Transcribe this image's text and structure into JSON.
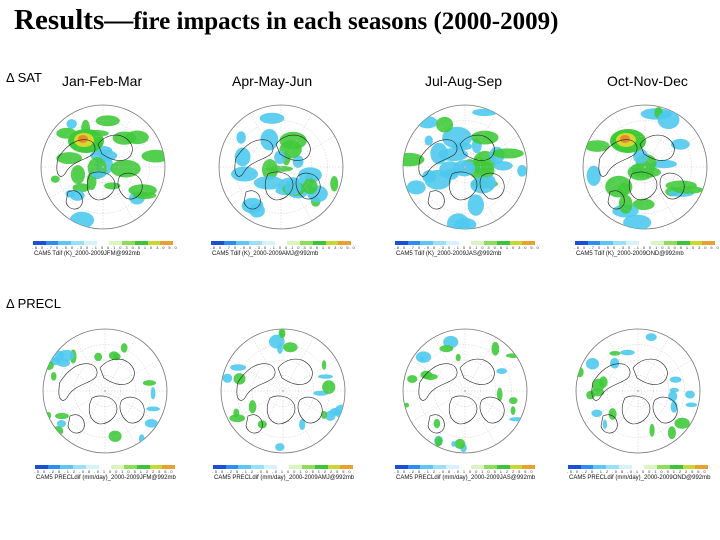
{
  "title": {
    "prefix": "Results—",
    "rest": "fire impacts in each seasons (2000-2009)"
  },
  "row_labels": {
    "sat": "Δ SAT",
    "precl": "Δ PRECL"
  },
  "seasons": [
    "Jan-Feb-Mar",
    "Apr-May-Jun",
    "Jul-Aug-Sep",
    "Oct-Nov-Dec"
  ],
  "sat_row": {
    "tick_labels": "-8.0 -7.0 -5.0 -3.0 -1.0 0.1 0.3 0.5 1.0 3.0 5.0",
    "captions": [
      "CAM5 Tdif (K)_2000-2009JFM@992mb",
      "CAM5 Tdif (K)_2000-2009AMJ@992mb",
      "CAM5 Tdif (K)_2000-2009JAS@992mb",
      "CAM5 Tdif (K)_2000-2009OND@992mb"
    ]
  },
  "precl_row": {
    "tick_labels": "-5.0 -2.5 -1.2 -0.5 -0.1 0 0.1 0.5 1.2 2.5 5.0",
    "captions": [
      "CAM5 PRECLdif (mm/day)_2000-2009JFM@992mb",
      "CAM5 PRECLdif (mm/day)_2000-2009AMJ@992mb",
      "CAM5 PRECLdif (mm/day)_2000-2009JAS@992mb",
      "CAM5 PRECLdif (mm/day)_2000-2009OND@992mb"
    ]
  },
  "colors": {
    "scale": [
      "#1a4fd6",
      "#2f8cf0",
      "#5ec6f5",
      "#9ae0f8",
      "#d6f2fb",
      "#ffffff",
      "#d9f5c0",
      "#8fdc5a",
      "#3cc43a",
      "#c8d830",
      "#e8a030"
    ],
    "cyan": "#4cc9ef",
    "green": "#3fca3a",
    "yellow": "#d6d82c",
    "orange": "#e88a2a",
    "coast": "#222222"
  }
}
